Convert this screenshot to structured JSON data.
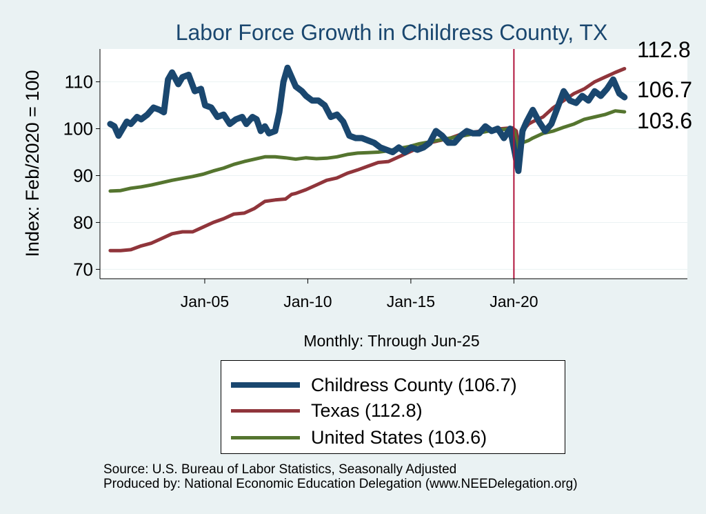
{
  "chart_data": {
    "type": "line",
    "title": "Labor Force Growth in Childress  County, TX",
    "ylabel": "Index: Feb/2020 = 100",
    "xlabel": "Monthly: Through Jun-25",
    "ylim": [
      68,
      117
    ],
    "yticks": [
      70,
      80,
      90,
      100,
      110
    ],
    "xlim": [
      2000.0,
      2028.5
    ],
    "xticks": [
      {
        "value": 2005.083,
        "label": "Jan-05"
      },
      {
        "value": 2010.083,
        "label": "Jan-10"
      },
      {
        "value": 2015.083,
        "label": "Jan-15"
      },
      {
        "value": 2020.083,
        "label": "Jan-20"
      }
    ],
    "vline": {
      "x": 2020.083,
      "color": "#b0143c"
    },
    "series": [
      {
        "name": "Childress  County",
        "legend_label": "Childress  County (106.7)",
        "color": "#1a476f",
        "end_label": "106.7",
        "x": [
          2000.5,
          2000.7,
          2000.9,
          2001.1,
          2001.3,
          2001.5,
          2001.8,
          2002.0,
          2002.3,
          2002.6,
          2002.9,
          2003.1,
          2003.3,
          2003.5,
          2003.8,
          2004.0,
          2004.3,
          2004.6,
          2004.9,
          2005.1,
          2005.4,
          2005.7,
          2006.0,
          2006.3,
          2006.6,
          2006.9,
          2007.1,
          2007.4,
          2007.6,
          2007.8,
          2008.0,
          2008.2,
          2008.5,
          2008.7,
          2008.9,
          2009.1,
          2009.3,
          2009.5,
          2009.8,
          2010.0,
          2010.3,
          2010.6,
          2010.9,
          2011.2,
          2011.5,
          2011.8,
          2012.1,
          2012.4,
          2012.7,
          2013.0,
          2013.3,
          2013.6,
          2013.9,
          2014.2,
          2014.5,
          2014.8,
          2015.1,
          2015.4,
          2015.7,
          2016.0,
          2016.3,
          2016.6,
          2016.9,
          2017.2,
          2017.5,
          2017.8,
          2018.1,
          2018.4,
          2018.7,
          2019.0,
          2019.3,
          2019.6,
          2019.9,
          2020.1,
          2020.3,
          2020.5,
          2020.7,
          2021.0,
          2021.3,
          2021.6,
          2021.9,
          2022.2,
          2022.5,
          2022.8,
          2023.1,
          2023.4,
          2023.7,
          2024.0,
          2024.3,
          2024.6,
          2024.9,
          2025.2,
          2025.45
        ],
        "y": [
          101,
          100.5,
          98.5,
          100,
          101.5,
          101,
          102.5,
          102,
          103,
          104.5,
          104,
          103.5,
          110.5,
          112,
          109.5,
          111,
          111.5,
          108,
          108.5,
          105,
          104.5,
          102.5,
          103,
          101,
          102,
          102.5,
          101,
          102.5,
          102,
          99.5,
          100.5,
          99,
          99.5,
          103.5,
          110,
          113,
          111,
          109,
          108,
          107,
          106,
          106,
          105,
          102.5,
          103,
          101.5,
          98.5,
          98,
          98,
          97.5,
          97,
          96,
          95.5,
          95,
          96,
          95,
          96,
          95.5,
          96,
          97,
          99.5,
          98.5,
          97,
          97,
          98.5,
          99.5,
          99,
          99,
          100.5,
          99.5,
          100,
          98,
          100,
          95.5,
          91,
          99.5,
          101.5,
          104,
          101.5,
          99.5,
          101,
          104.5,
          108,
          106,
          105.5,
          107,
          106,
          108,
          107,
          108.5,
          110.5,
          107.5,
          106.7
        ]
      },
      {
        "name": "Texas",
        "legend_label": "Texas (112.8)",
        "color": "#90353b",
        "end_label": "112.8",
        "x": [
          2000.5,
          2001.0,
          2001.5,
          2002.0,
          2002.5,
          2003.0,
          2003.5,
          2004.0,
          2004.5,
          2005.0,
          2005.5,
          2006.0,
          2006.5,
          2007.0,
          2007.5,
          2008.0,
          2008.5,
          2009.0,
          2009.3,
          2009.5,
          2010.0,
          2010.5,
          2011.0,
          2011.5,
          2012.0,
          2012.5,
          2013.0,
          2013.5,
          2014.0,
          2014.5,
          2015.0,
          2015.5,
          2016.0,
          2016.5,
          2017.0,
          2017.5,
          2018.0,
          2018.5,
          2019.0,
          2019.5,
          2020.0,
          2020.2,
          2020.35,
          2020.5,
          2020.8,
          2021.0,
          2021.5,
          2022.0,
          2022.5,
          2023.0,
          2023.5,
          2024.0,
          2024.5,
          2025.0,
          2025.45
        ],
        "y": [
          74,
          74,
          74.2,
          75,
          75.6,
          76.6,
          77.6,
          78,
          78,
          79,
          80,
          80.8,
          81.8,
          82,
          83,
          84.5,
          84.8,
          85,
          86,
          86.2,
          87,
          88,
          89,
          89.5,
          90.5,
          91.2,
          92,
          92.8,
          93,
          94,
          95,
          96,
          97,
          97.5,
          98,
          98.8,
          99.2,
          99.5,
          99.8,
          100,
          100.2,
          99.5,
          95.5,
          99.5,
          101,
          101.5,
          102.5,
          104.5,
          106,
          107.5,
          108.5,
          110,
          111,
          112,
          112.8
        ]
      },
      {
        "name": "United States",
        "legend_label": "United States (103.6)",
        "color": "#55752f",
        "end_label": "103.6",
        "x": [
          2000.5,
          2001.0,
          2001.5,
          2002.0,
          2002.5,
          2003.0,
          2003.5,
          2004.0,
          2004.5,
          2005.0,
          2005.5,
          2006.0,
          2006.5,
          2007.0,
          2007.5,
          2008.0,
          2008.5,
          2009.0,
          2009.5,
          2010.0,
          2010.5,
          2011.0,
          2011.5,
          2012.0,
          2012.5,
          2013.0,
          2013.5,
          2014.0,
          2014.5,
          2015.0,
          2015.5,
          2016.0,
          2016.5,
          2017.0,
          2017.5,
          2018.0,
          2018.5,
          2019.0,
          2019.5,
          2020.0,
          2020.1,
          2020.3,
          2020.5,
          2020.8,
          2021.0,
          2021.5,
          2022.0,
          2022.5,
          2023.0,
          2023.5,
          2024.0,
          2024.5,
          2025.0,
          2025.45
        ],
        "y": [
          86.7,
          86.8,
          87.3,
          87.6,
          88,
          88.5,
          89,
          89.4,
          89.8,
          90.3,
          91,
          91.6,
          92.4,
          93,
          93.5,
          94,
          94,
          93.8,
          93.5,
          93.8,
          93.6,
          93.7,
          94,
          94.5,
          94.8,
          94.9,
          95,
          95.3,
          95.8,
          96.2,
          96.8,
          97.2,
          97.6,
          98,
          98.4,
          98.8,
          99.2,
          99.6,
          99.8,
          100,
          99.6,
          95,
          97,
          97.5,
          98,
          99,
          99.5,
          100.3,
          101,
          102,
          102.5,
          103,
          103.8,
          103.6
        ]
      }
    ]
  },
  "source_line1": "Source: U.S. Bureau of Labor Statistics, Seasonally Adjusted",
  "source_line2": "Produced by: National Economic Education Delegation (www.NEEDelegation.org)"
}
